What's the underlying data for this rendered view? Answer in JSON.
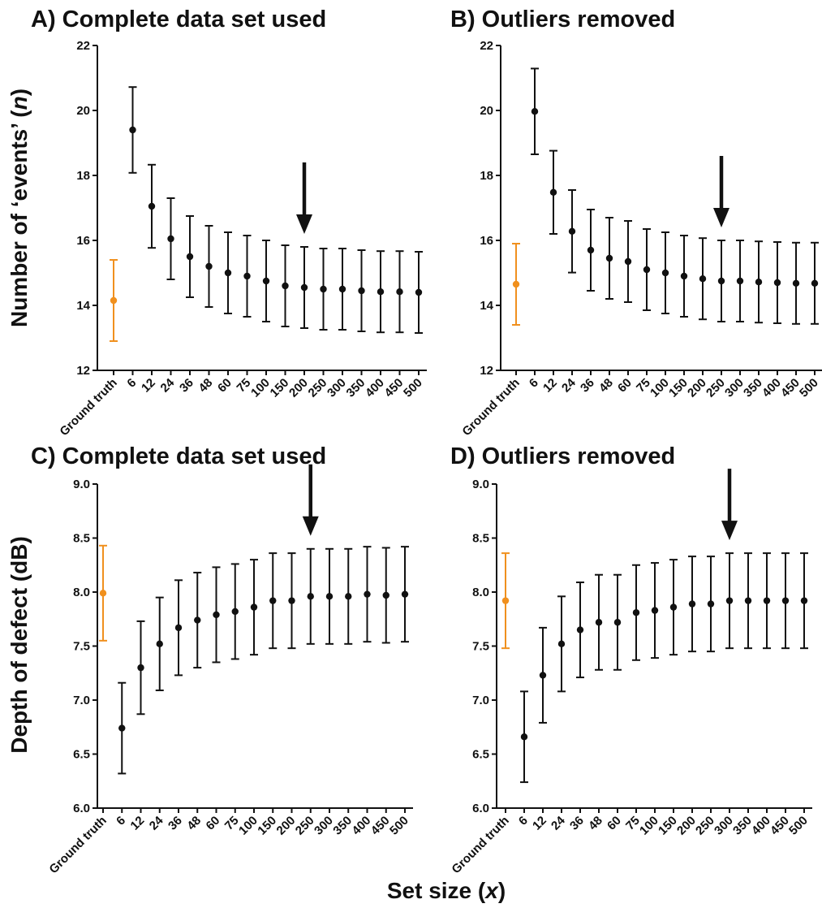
{
  "xlabel_text": "Set size (",
  "xlabel_var": "x",
  "xlabel_close": ")",
  "colors": {
    "ground_truth": "#f0901e",
    "data": "#111111"
  },
  "chart_data": [
    {
      "type": "scatter",
      "title": "A) Complete data set used",
      "ylabel_text": "Number of ‘events’ (",
      "ylabel_var": "n",
      "ylabel_close": ")",
      "categories": [
        "Ground truth",
        "6",
        "12",
        "24",
        "36",
        "48",
        "60",
        "75",
        "100",
        "150",
        "200",
        "250",
        "300",
        "350",
        "400",
        "450",
        "500"
      ],
      "y": [
        14.15,
        19.4,
        17.05,
        16.05,
        15.5,
        15.2,
        15.0,
        14.9,
        14.75,
        14.6,
        14.55,
        14.5,
        14.5,
        14.45,
        14.42,
        14.42,
        14.4
      ],
      "err": [
        1.25,
        1.32,
        1.28,
        1.25,
        1.25,
        1.25,
        1.25,
        1.25,
        1.25,
        1.25,
        1.25,
        1.25,
        1.25,
        1.25,
        1.25,
        1.25,
        1.25
      ],
      "ylim": [
        12,
        22
      ],
      "yticks": [
        "12",
        "14",
        "16",
        "18",
        "20",
        "22"
      ],
      "arrow_at": "200"
    },
    {
      "type": "scatter",
      "title": "B) Outliers removed",
      "categories": [
        "Ground truth",
        "6",
        "12",
        "24",
        "36",
        "48",
        "60",
        "75",
        "100",
        "150",
        "200",
        "250",
        "300",
        "350",
        "400",
        "450",
        "500"
      ],
      "y": [
        14.65,
        19.97,
        17.48,
        16.28,
        15.7,
        15.45,
        15.35,
        15.1,
        15.0,
        14.9,
        14.82,
        14.75,
        14.75,
        14.72,
        14.7,
        14.68,
        14.68
      ],
      "err": [
        1.25,
        1.32,
        1.28,
        1.27,
        1.25,
        1.25,
        1.25,
        1.25,
        1.25,
        1.25,
        1.25,
        1.25,
        1.25,
        1.25,
        1.25,
        1.25,
        1.25
      ],
      "ylim": [
        12,
        22
      ],
      "yticks": [
        "12",
        "14",
        "16",
        "18",
        "20",
        "22"
      ],
      "arrow_at": "250"
    },
    {
      "type": "scatter",
      "title": "C) Complete data set used",
      "ylabel_text": "Depth of defect (dB)",
      "categories": [
        "Ground truth",
        "6",
        "12",
        "24",
        "36",
        "48",
        "60",
        "75",
        "100",
        "150",
        "200",
        "250",
        "300",
        "350",
        "400",
        "450",
        "500"
      ],
      "y": [
        7.99,
        6.74,
        7.3,
        7.52,
        7.67,
        7.74,
        7.79,
        7.82,
        7.86,
        7.92,
        7.92,
        7.96,
        7.96,
        7.96,
        7.98,
        7.97,
        7.98
      ],
      "err": [
        0.44,
        0.42,
        0.43,
        0.43,
        0.44,
        0.44,
        0.44,
        0.44,
        0.44,
        0.44,
        0.44,
        0.44,
        0.44,
        0.44,
        0.44,
        0.44,
        0.44
      ],
      "ylim": [
        6.0,
        9.0
      ],
      "yticks": [
        "6.0",
        "6.5",
        "7.0",
        "7.5",
        "8.0",
        "8.5",
        "9.0"
      ],
      "arrow_at": "250"
    },
    {
      "type": "scatter",
      "title": "D) Outliers removed",
      "categories": [
        "Ground truth",
        "6",
        "12",
        "24",
        "36",
        "48",
        "60",
        "75",
        "100",
        "150",
        "200",
        "250",
        "300",
        "350",
        "400",
        "450",
        "500"
      ],
      "y": [
        7.92,
        6.66,
        7.23,
        7.52,
        7.65,
        7.72,
        7.72,
        7.81,
        7.83,
        7.86,
        7.89,
        7.89,
        7.92,
        7.92,
        7.92,
        7.92,
        7.92
      ],
      "err": [
        0.44,
        0.42,
        0.44,
        0.44,
        0.44,
        0.44,
        0.44,
        0.44,
        0.44,
        0.44,
        0.44,
        0.44,
        0.44,
        0.44,
        0.44,
        0.44,
        0.44
      ],
      "ylim": [
        6.0,
        9.0
      ],
      "yticks": [
        "6.0",
        "6.5",
        "7.0",
        "7.5",
        "8.0",
        "8.5",
        "9.0"
      ],
      "arrow_at": "300"
    }
  ]
}
